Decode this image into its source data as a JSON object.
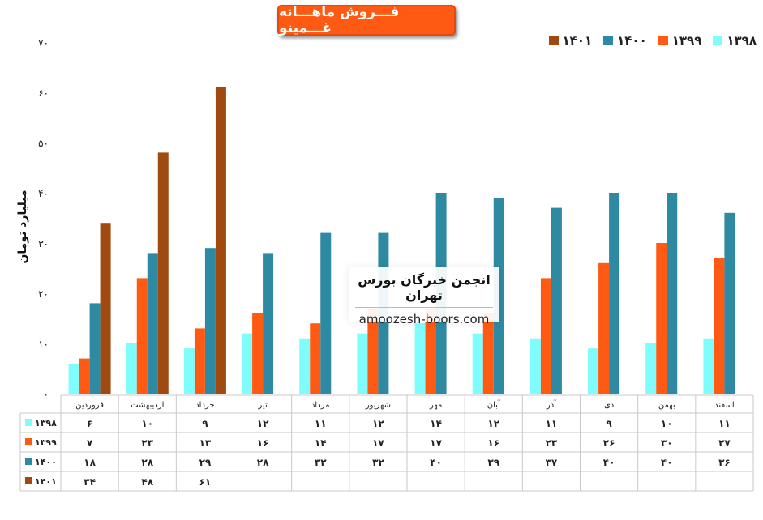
{
  "chart_data": {
    "type": "bar",
    "title": "فـــروش ماهـــانه غـــمینو",
    "ylabel": "میلیارد تومان",
    "ylim": [
      0,
      70
    ],
    "yticks": [
      "۰",
      "۱۰",
      "۲۰",
      "۳۰",
      "۴۰",
      "۵۰",
      "۶۰",
      "۷۰"
    ],
    "categories": [
      "فروردین",
      "اردیبهشت",
      "خرداد",
      "تیر",
      "مرداد",
      "شهریور",
      "مهر",
      "آبان",
      "آذر",
      "دی",
      "بهمن",
      "اسفند"
    ],
    "series": [
      {
        "name": "۱۳۹۸",
        "color": "#7ffcfc",
        "values": [
          6,
          10,
          9,
          12,
          11,
          12,
          14,
          12,
          11,
          9,
          10,
          11
        ],
        "labels": [
          "۶",
          "۱۰",
          "۹",
          "۱۲",
          "۱۱",
          "۱۲",
          "۱۴",
          "۱۲",
          "۱۱",
          "۹",
          "۱۰",
          "۱۱"
        ]
      },
      {
        "name": "۱۳۹۹",
        "color": "#fe5a14",
        "values": [
          7,
          23,
          13,
          16,
          14,
          17,
          17,
          16,
          23,
          26,
          30,
          27
        ],
        "labels": [
          "۷",
          "۲۳",
          "۱۳",
          "۱۶",
          "۱۴",
          "۱۷",
          "۱۷",
          "۱۶",
          "۲۳",
          "۲۶",
          "۳۰",
          "۲۷"
        ]
      },
      {
        "name": "۱۴۰۰",
        "color": "#2e8aa3",
        "values": [
          18,
          28,
          29,
          28,
          32,
          32,
          40,
          39,
          37,
          40,
          40,
          36
        ],
        "labels": [
          "۱۸",
          "۲۸",
          "۲۹",
          "۲۸",
          "۳۲",
          "۳۲",
          "۴۰",
          "۳۹",
          "۳۷",
          "۴۰",
          "۴۰",
          "۳۶"
        ]
      },
      {
        "name": "۱۴۰۱",
        "color": "#a04a12",
        "values": [
          34,
          48,
          61,
          null,
          null,
          null,
          null,
          null,
          null,
          null,
          null,
          null
        ],
        "labels": [
          "۳۴",
          "۴۸",
          "۶۱",
          "",
          "",
          "",
          "",
          "",
          "",
          "",
          "",
          ""
        ]
      }
    ],
    "legend_position": "top-right",
    "grid": false,
    "data_table": true
  },
  "watermark": {
    "line1": "انجمن خبرگان بورس تهران",
    "line2": "amoozesh-boors.com"
  }
}
